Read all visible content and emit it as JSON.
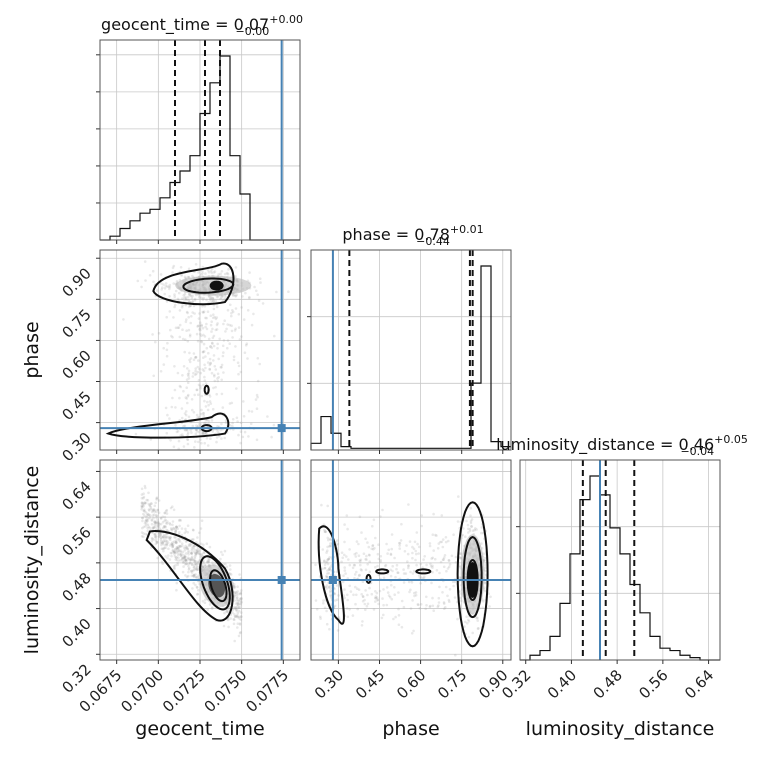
{
  "chart_data": {
    "type": "corner",
    "parameters": [
      {
        "name": "geocent_time",
        "label": "geocent_time",
        "range": [
          0.0665,
          0.0785
        ],
        "ticks": [
          "0.0675",
          "0.0700",
          "0.0725",
          "0.0750",
          "0.0775"
        ],
        "title": "geocent_time = 0.07",
        "title_sup": "+0.00",
        "title_sub": "−0.00",
        "quantiles": [
          0.071,
          0.0728,
          0.0737
        ],
        "truth": 0.0774,
        "hist_edges_start": 0.0665,
        "hist_bin_width": 0.0006,
        "hist_counts": [
          0,
          1,
          3,
          5,
          7,
          8,
          11,
          15,
          18,
          22,
          33,
          41,
          48,
          22,
          12,
          0,
          0,
          0,
          0,
          0
        ]
      },
      {
        "name": "phase",
        "label": "phase",
        "range": [
          0.2,
          0.93
        ],
        "ticks": [
          "0.30",
          "0.45",
          "0.60",
          "0.75",
          "0.90"
        ],
        "title": "phase = 0.78",
        "title_sup": "+0.01",
        "title_sub": "−0.44",
        "quantiles": [
          0.34,
          0.78,
          0.79
        ],
        "truth": 0.28,
        "hist_edges_start": 0.2,
        "hist_bin_width": 0.0365,
        "hist_counts": [
          4,
          20,
          10,
          2,
          1,
          1,
          1,
          1,
          1,
          1,
          1,
          1,
          1,
          1,
          1,
          1,
          40,
          110,
          5,
          2
        ]
      },
      {
        "name": "luminosity_distance",
        "label": "luminosity_distance",
        "range": [
          0.31,
          0.66
        ],
        "ticks": [
          "0.32",
          "0.40",
          "0.48",
          "0.56",
          "0.64"
        ],
        "title": "luminosity_distance = 0.46",
        "title_sup": "+0.05",
        "title_sub": "−0.04",
        "quantiles": [
          0.42,
          0.46,
          0.51
        ],
        "truth": 0.45,
        "hist_edges_start": 0.31,
        "hist_bin_width": 0.0175,
        "hist_counts": [
          0,
          2,
          4,
          10,
          24,
          45,
          68,
          78,
          70,
          56,
          45,
          32,
          20,
          10,
          5,
          4,
          2,
          1,
          0,
          0
        ]
      }
    ],
    "panel_pairs": [
      {
        "x": "geocent_time",
        "y": "phase"
      },
      {
        "x": "geocent_time",
        "y": "luminosity_distance"
      },
      {
        "x": "phase",
        "y": "luminosity_distance"
      }
    ],
    "truth_color": "#4682b4",
    "contour_color": "#111111",
    "grid": true
  }
}
